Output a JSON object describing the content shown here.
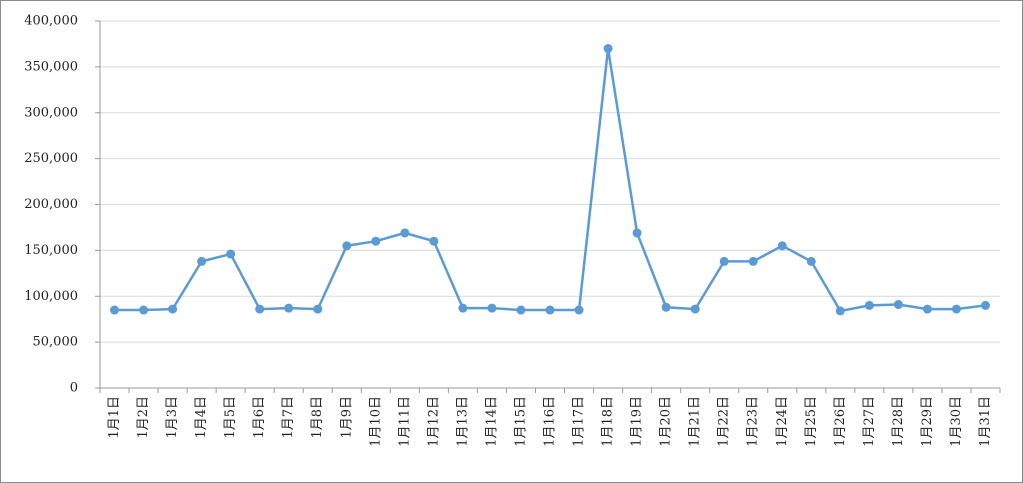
{
  "chart_data": {
    "type": "line",
    "categories": [
      "1月1日",
      "1月2日",
      "1月3日",
      "1月4日",
      "1月5日",
      "1月6日",
      "1月7日",
      "1月8日",
      "1月9日",
      "1月10日",
      "1月11日",
      "1月12日",
      "1月13日",
      "1月14日",
      "1月15日",
      "1月16日",
      "1月17日",
      "1月18日",
      "1月19日",
      "1月20日",
      "1月21日",
      "1月22日",
      "1月23日",
      "1月24日",
      "1月25日",
      "1月26日",
      "1月27日",
      "1月28日",
      "1月29日",
      "1月30日",
      "1月31日"
    ],
    "values": [
      85000,
      85000,
      86000,
      138000,
      146000,
      86000,
      87000,
      86000,
      155000,
      160000,
      169000,
      160000,
      87000,
      87000,
      85000,
      85000,
      85000,
      370000,
      169000,
      88000,
      86000,
      138000,
      138000,
      155000,
      138000,
      84000,
      90000,
      91000,
      86000,
      86000,
      90000
    ],
    "color": "#5b9bd5",
    "ylim": [
      0,
      400000
    ],
    "yticks": [
      0,
      {
        "value": 50000,
        "label": "50,000"
      },
      {
        "value": 100000,
        "label": "100,000"
      },
      {
        "value": 150000,
        "label": "150,000"
      },
      {
        "value": 200000,
        "label": "200,000"
      },
      {
        "value": 250000,
        "label": "250,000"
      },
      {
        "value": 300000,
        "label": "300,000"
      },
      {
        "value": 350000,
        "label": "350,000"
      },
      {
        "value": 400000,
        "label": "400,000"
      }
    ],
    "grid": true
  }
}
